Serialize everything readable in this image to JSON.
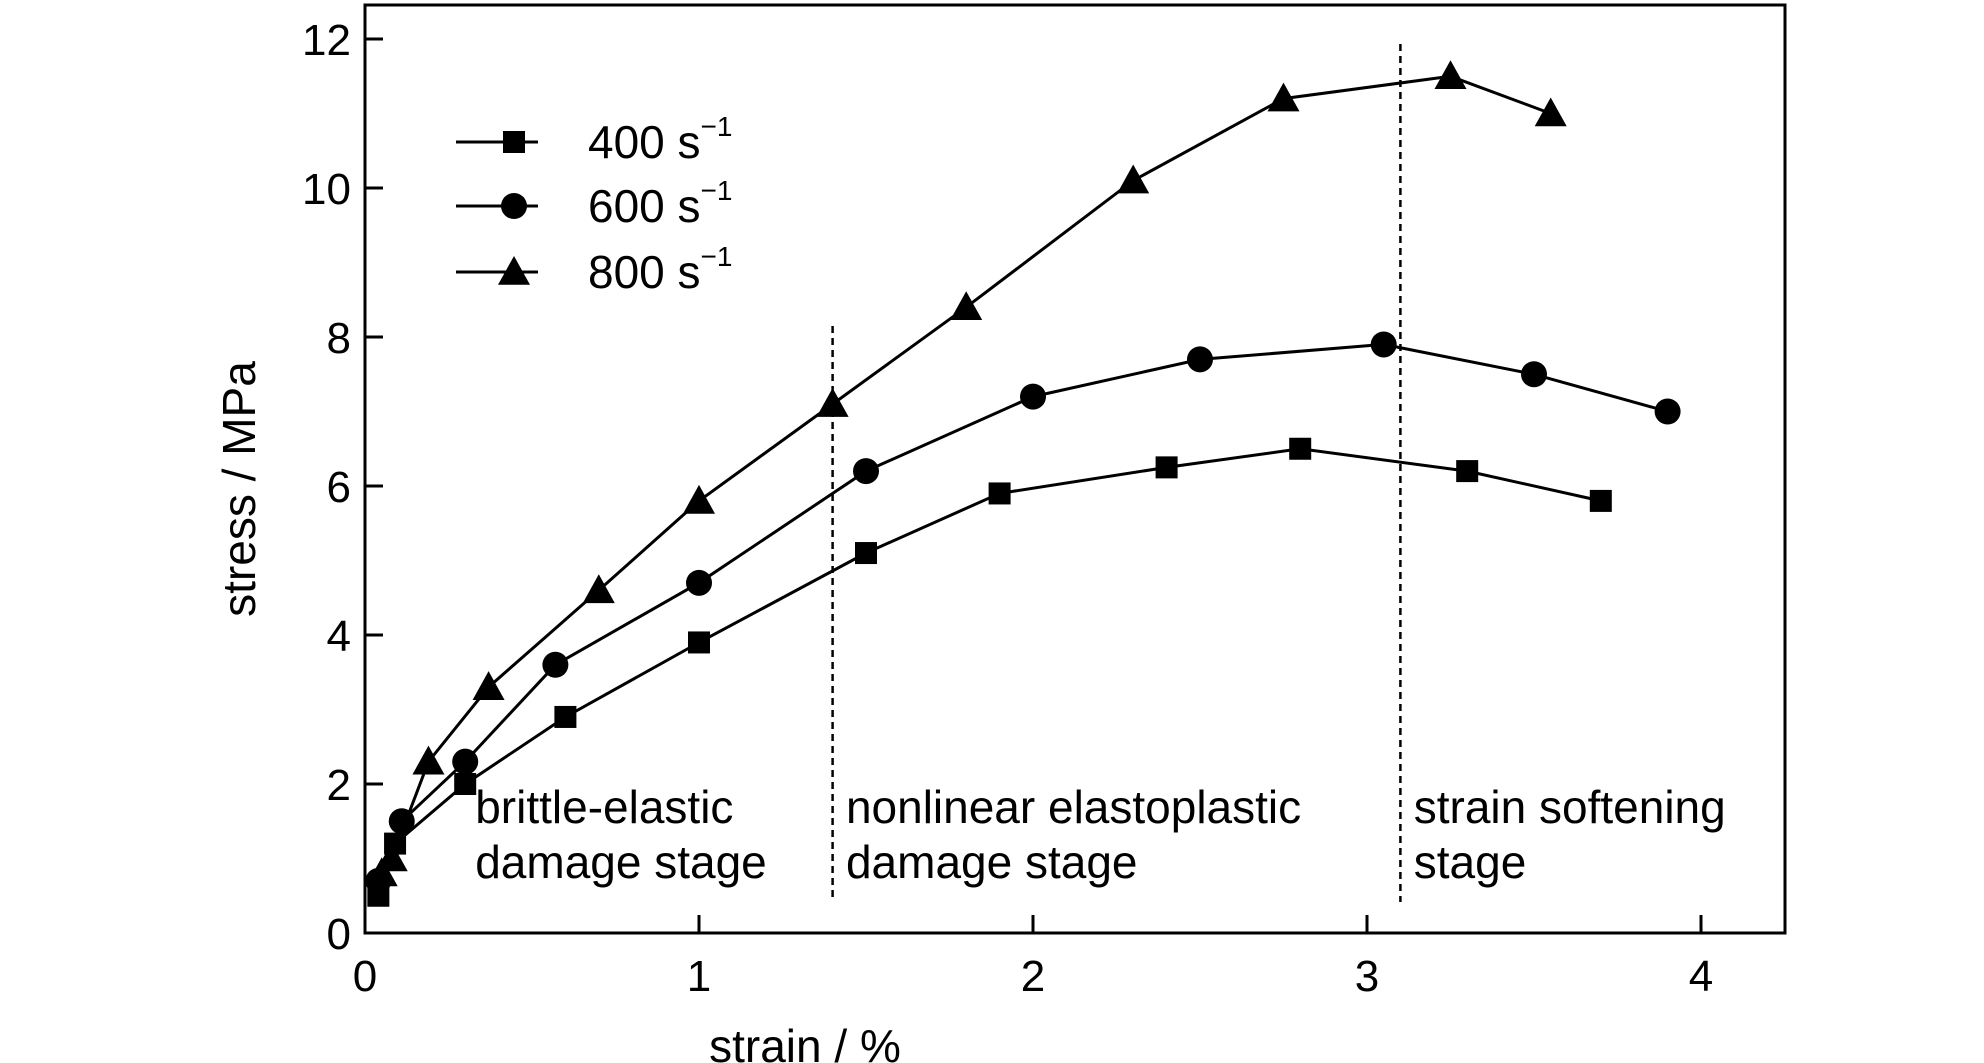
{
  "chart_data": {
    "type": "line",
    "xlabel": "strain / %",
    "ylabel": "stress / MPa",
    "xlim": [
      0,
      4.25
    ],
    "ylim": [
      0,
      12.4
    ],
    "xticks": [
      0,
      1,
      2,
      3,
      4
    ],
    "yticks": [
      0,
      2,
      4,
      6,
      8,
      10,
      12
    ],
    "xtick_labels": [
      "0",
      "1",
      "2",
      "3",
      "4"
    ],
    "ytick_labels": [
      "0",
      "2",
      "4",
      "6",
      "8",
      "10",
      "12"
    ],
    "grid": false,
    "legend_position": "top-left",
    "series": [
      {
        "name": "400 s",
        "name_superscript": "−1",
        "marker": "square",
        "points": [
          [
            0.04,
            0.5
          ],
          [
            0.09,
            1.2
          ],
          [
            0.3,
            2.0
          ],
          [
            0.6,
            2.9
          ],
          [
            1.0,
            3.9
          ],
          [
            1.5,
            5.1
          ],
          [
            1.9,
            5.9
          ],
          [
            2.4,
            6.25
          ],
          [
            2.8,
            6.5
          ],
          [
            3.3,
            6.2
          ],
          [
            3.7,
            5.8
          ]
        ]
      },
      {
        "name": "600 s",
        "name_superscript": "−1",
        "marker": "circle",
        "points": [
          [
            0.04,
            0.7
          ],
          [
            0.11,
            1.5
          ],
          [
            0.3,
            2.3
          ],
          [
            0.57,
            3.6
          ],
          [
            1.0,
            4.7
          ],
          [
            1.5,
            6.2
          ],
          [
            2.0,
            7.2
          ],
          [
            2.5,
            7.7
          ],
          [
            3.05,
            7.9
          ],
          [
            3.5,
            7.5
          ],
          [
            3.9,
            7.0
          ]
        ]
      },
      {
        "name": "800 s",
        "name_superscript": "−1",
        "marker": "triangle",
        "points": [
          [
            0.05,
            0.8
          ],
          [
            0.08,
            1.0
          ],
          [
            0.19,
            2.3
          ],
          [
            0.37,
            3.3
          ],
          [
            0.7,
            4.6
          ],
          [
            1.0,
            5.8
          ],
          [
            1.4,
            7.1
          ],
          [
            1.8,
            8.4
          ],
          [
            2.3,
            10.1
          ],
          [
            2.75,
            11.2
          ],
          [
            3.25,
            11.5
          ],
          [
            3.55,
            11.0
          ]
        ]
      }
    ],
    "vlines": [
      1.4,
      3.1
    ],
    "annotations": [
      {
        "lines": [
          "brittle-elastic",
          "damage stage"
        ],
        "x": 0.33
      },
      {
        "lines": [
          "nonlinear elastoplastic",
          "damage stage"
        ],
        "x": 1.44
      },
      {
        "lines": [
          "strain softening",
          "stage"
        ],
        "x": 3.14
      }
    ]
  }
}
